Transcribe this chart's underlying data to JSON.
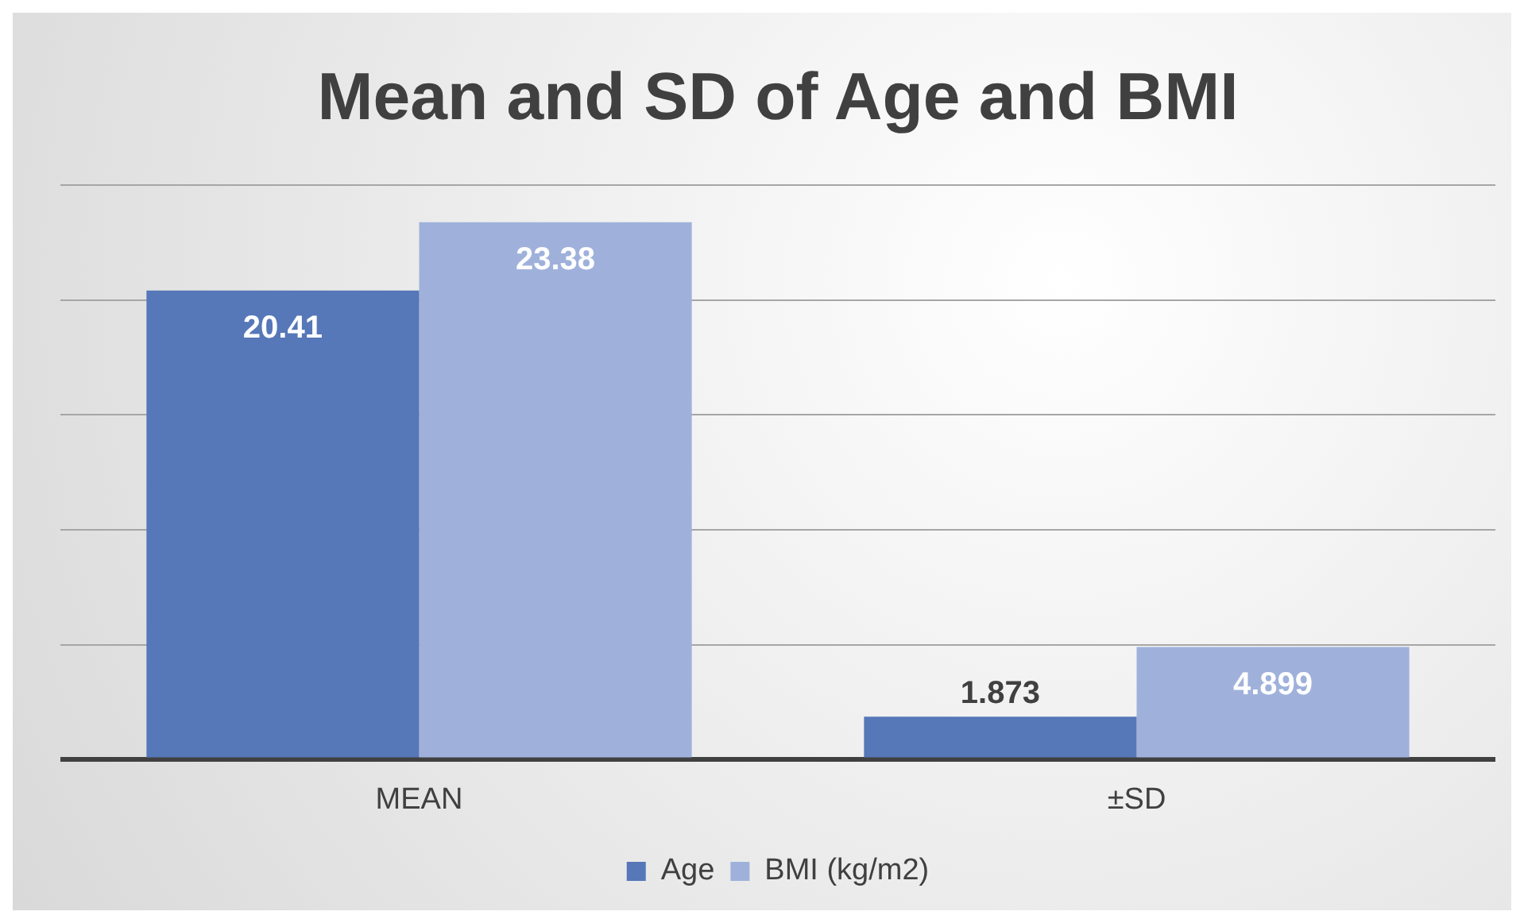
{
  "chart_data": {
    "type": "bar",
    "title": "Mean and SD of Age and BMI",
    "categories": [
      "MEAN",
      "±SD"
    ],
    "series": [
      {
        "name": "Age",
        "color": "#5677b8",
        "values": [
          20.41,
          1.873
        ]
      },
      {
        "name": "BMI (kg/m2)",
        "color": "#9fb1db",
        "values": [
          23.38,
          4.899
        ]
      }
    ],
    "ylim": [
      0,
      25
    ],
    "yticks": [
      {
        "value": 0,
        "label": null
      },
      {
        "value": 5,
        "label": null
      },
      {
        "value": 10,
        "label": null
      },
      {
        "value": 15,
        "label": null
      },
      {
        "value": 20,
        "label": null
      },
      {
        "value": 25,
        "label": null
      }
    ],
    "tick_labels": "x",
    "grid": "y",
    "legend": "bottom",
    "data_labels": true
  }
}
